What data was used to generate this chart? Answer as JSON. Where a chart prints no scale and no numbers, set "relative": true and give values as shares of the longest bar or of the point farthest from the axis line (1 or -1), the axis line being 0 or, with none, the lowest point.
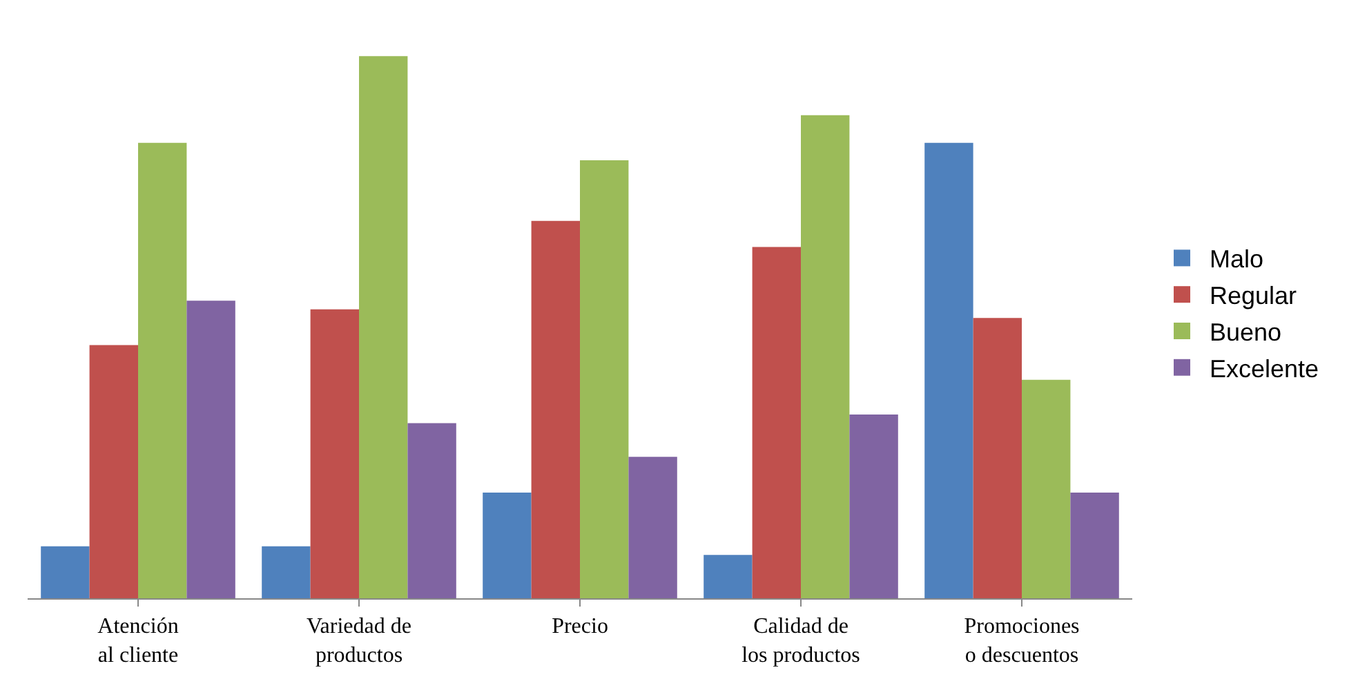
{
  "chart_data": {
    "type": "bar",
    "relative": true,
    "legend": "right",
    "categories": [
      "Atención al cliente",
      "Variedad de productos",
      "Precio",
      "Calidad de los productos",
      "Promociones o descuentos"
    ],
    "series": [
      {
        "name": "Malo",
        "color": "#4f81bd",
        "values": [
          0.096,
          0.096,
          0.195,
          0.08,
          0.84
        ]
      },
      {
        "name": "Regular",
        "color": "#c0504d",
        "values": [
          0.467,
          0.533,
          0.696,
          0.648,
          0.517
        ]
      },
      {
        "name": "Bueno",
        "color": "#9bbb59",
        "values": [
          0.84,
          1,
          0.808,
          0.891,
          0.403
        ]
      },
      {
        "name": "Excelente",
        "color": "#8064a2",
        "values": [
          0.549,
          0.323,
          0.261,
          0.339,
          0.195
        ]
      }
    ]
  }
}
